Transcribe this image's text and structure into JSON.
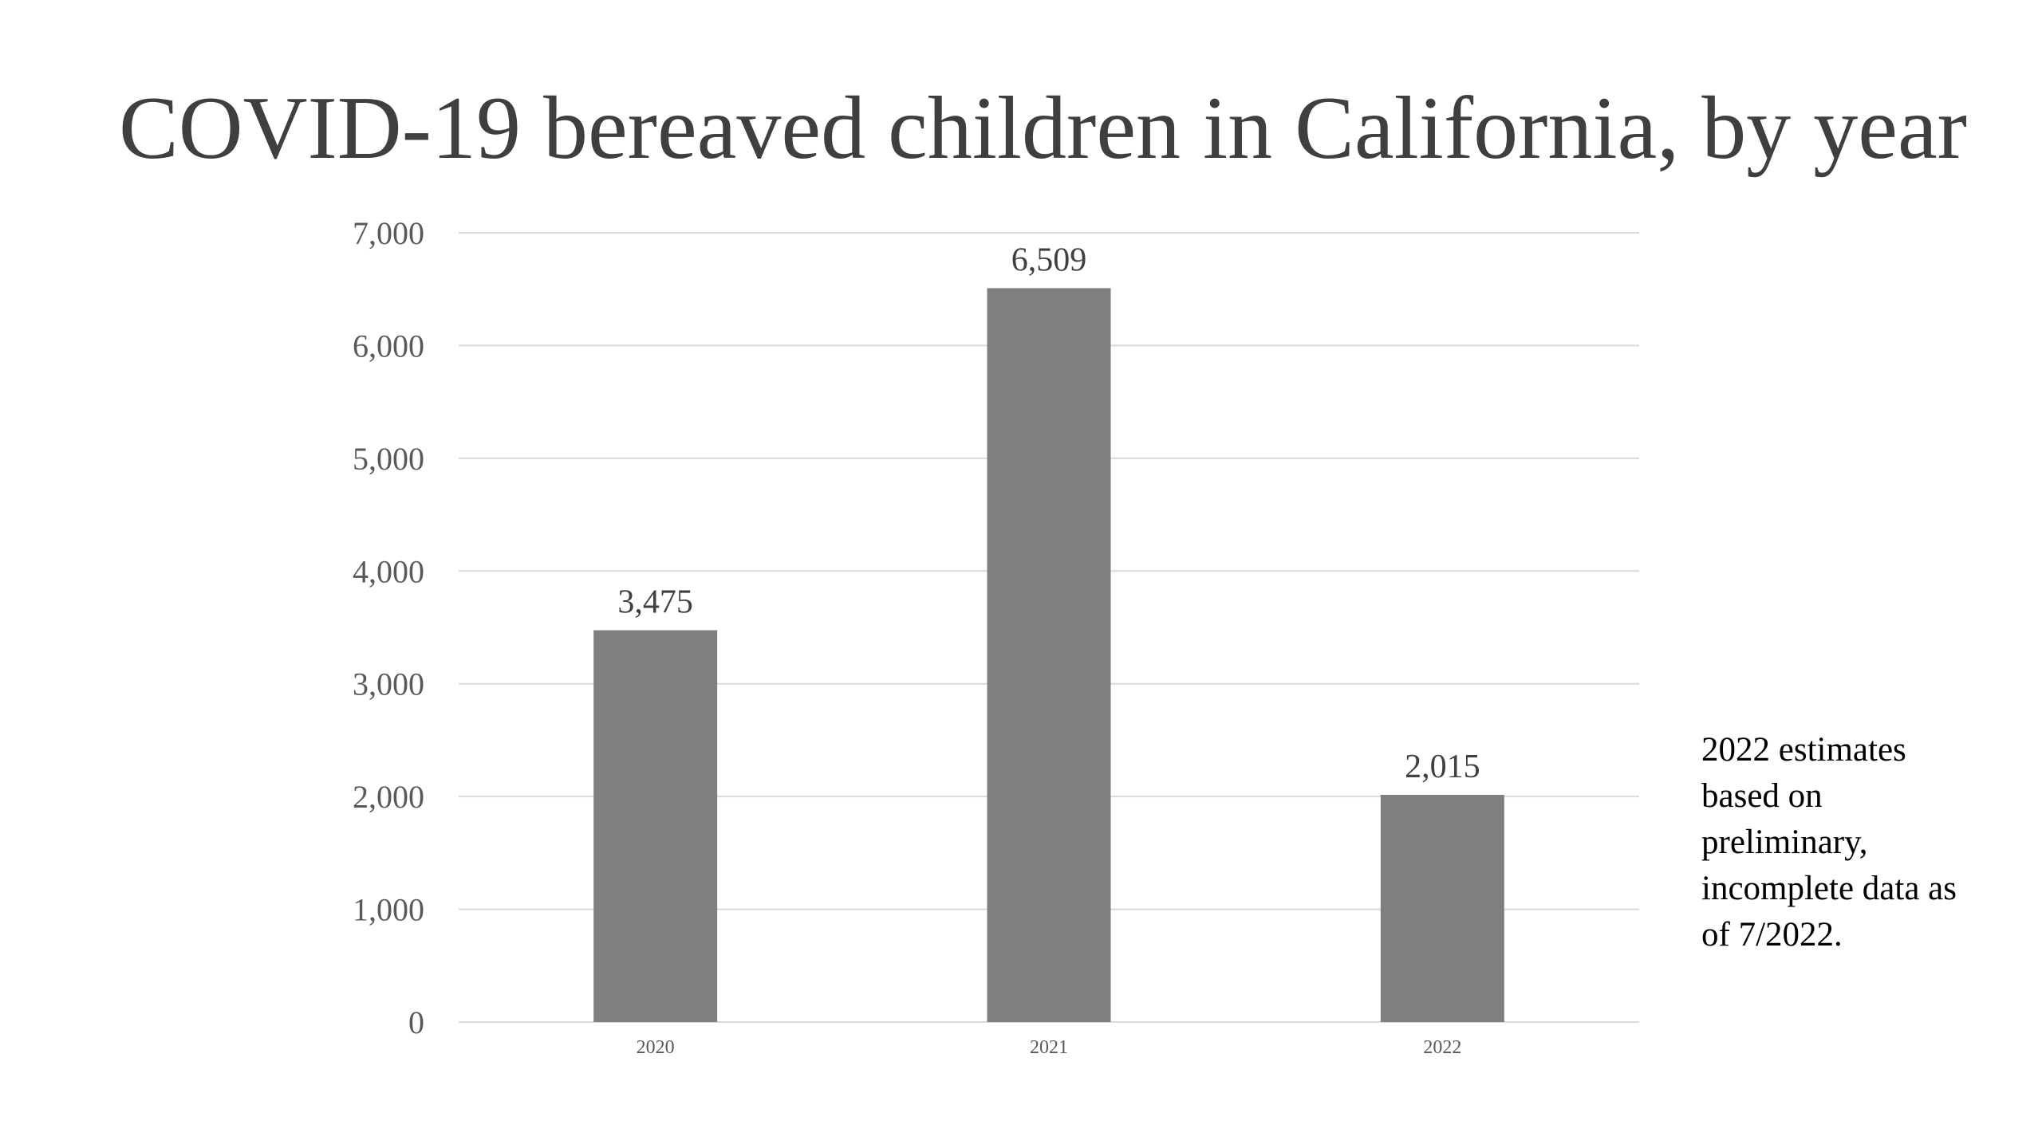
{
  "chart_data": {
    "type": "bar",
    "title": "COVID-19 bereaved children in California, by year",
    "categories": [
      "2020",
      "2021",
      "2022"
    ],
    "values": [
      3475,
      6509,
      2015
    ],
    "value_labels": [
      "3,475",
      "6,509",
      "2,015"
    ],
    "ylim": [
      0,
      7000
    ],
    "yticks": [
      0,
      1000,
      2000,
      3000,
      4000,
      5000,
      6000,
      7000
    ],
    "ytick_labels": [
      "0",
      "1,000",
      "2,000",
      "3,000",
      "4,000",
      "5,000",
      "6,000",
      "7,000"
    ],
    "xlabel": "",
    "ylabel": "",
    "grid": true,
    "legend": "none",
    "bar_color": "#7f7f7f",
    "grid_color": "#d9d9d9",
    "annotation": "2022 estimates based on preliminary, incomplete data as of 7/2022."
  }
}
